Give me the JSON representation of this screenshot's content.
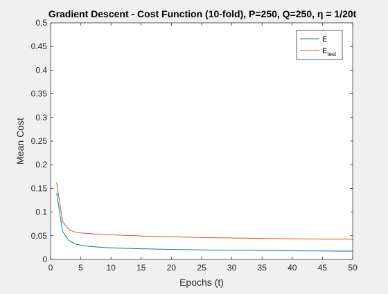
{
  "chart_data": {
    "type": "line",
    "title": "Gradient Descent - Cost Function (10-fold), P=250, Q=250, η = 1/20t",
    "xlabel": "Epochs (t)",
    "ylabel": "Mean Cost",
    "xlim": [
      0,
      50
    ],
    "ylim": [
      0,
      0.5
    ],
    "xticks": [
      0,
      5,
      10,
      15,
      20,
      25,
      30,
      35,
      40,
      45,
      50
    ],
    "yticks": [
      0,
      0.05,
      0.1,
      0.15,
      0.2,
      0.25,
      0.3,
      0.35,
      0.4,
      0.45,
      0.5
    ],
    "grid": false,
    "legend_position": "top-right",
    "x": [
      1,
      2,
      3,
      4,
      5,
      6,
      7,
      8,
      9,
      10,
      11,
      12,
      13,
      14,
      15,
      16,
      17,
      18,
      19,
      20,
      21,
      22,
      23,
      24,
      25,
      26,
      27,
      28,
      29,
      30,
      31,
      32,
      33,
      34,
      35,
      36,
      37,
      38,
      39,
      40,
      41,
      42,
      43,
      44,
      45,
      46,
      47,
      48,
      49,
      50
    ],
    "series": [
      {
        "name": "E",
        "color": "#0072BD",
        "values": [
          0.14,
          0.059,
          0.04,
          0.033,
          0.03,
          0.028,
          0.027,
          0.026,
          0.025,
          0.0245,
          0.024,
          0.0236,
          0.0232,
          0.0228,
          0.0225,
          0.0222,
          0.0219,
          0.0216,
          0.0213,
          0.0211,
          0.0209,
          0.0207,
          0.0205,
          0.0203,
          0.0201,
          0.0199,
          0.0198,
          0.0196,
          0.0195,
          0.0193,
          0.0192,
          0.0191,
          0.0189,
          0.0188,
          0.0187,
          0.0186,
          0.0185,
          0.0184,
          0.0183,
          0.0182,
          0.0181,
          0.018,
          0.0179,
          0.0179,
          0.0178,
          0.0177,
          0.0176,
          0.0176,
          0.0175,
          0.0175
        ]
      },
      {
        "name": "E",
        "subscript": "test",
        "color": "#D95319",
        "values": [
          0.163,
          0.08,
          0.063,
          0.058,
          0.056,
          0.055,
          0.054,
          0.0535,
          0.053,
          0.052,
          0.0515,
          0.051,
          0.0505,
          0.05,
          0.0495,
          0.049,
          0.0487,
          0.0484,
          0.0481,
          0.0478,
          0.0475,
          0.0472,
          0.0469,
          0.0466,
          0.0463,
          0.0461,
          0.0459,
          0.0457,
          0.0455,
          0.0453,
          0.0451,
          0.0449,
          0.0447,
          0.0445,
          0.0443,
          0.0441,
          0.044,
          0.0438,
          0.0437,
          0.0435,
          0.0434,
          0.0433,
          0.0432,
          0.0431,
          0.043,
          0.0429,
          0.0428,
          0.0427,
          0.0427,
          0.0426
        ]
      }
    ]
  }
}
